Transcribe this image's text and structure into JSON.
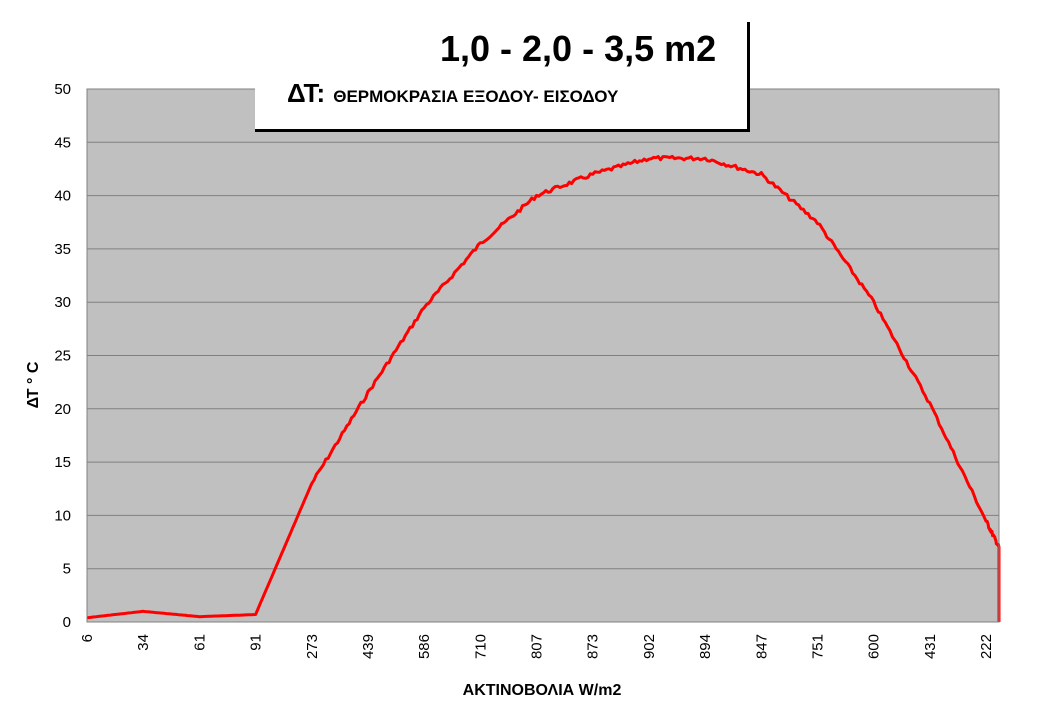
{
  "title": "1,0 - 2,0 - 3,5 m2",
  "subtitle_prefix": "ΔΤ:",
  "subtitle_text": "ΘΕΡΜΟΚΡΑΣΙΑ ΕΞΟΔΟΥ- ΕΙΣΟΔΟΥ",
  "colors": {
    "plot_background": "#c0c0c0",
    "gridline": "#808080",
    "series_line": "#ff0000"
  },
  "chart_data": {
    "type": "line",
    "title": "1,0 - 2,0 - 3,5 m2",
    "xlabel": "ΑΚΤΙΝΟΒΟΛΙΑ W/m2",
    "ylabel": "ΔΤ ° C",
    "ylim": [
      0,
      50
    ],
    "yticks": [
      0,
      5,
      10,
      15,
      20,
      25,
      30,
      35,
      40,
      45,
      50
    ],
    "grid": true,
    "legend": "none",
    "categories": [
      "6",
      "34",
      "61",
      "91",
      "273",
      "439",
      "586",
      "710",
      "807",
      "873",
      "902",
      "894",
      "847",
      "751",
      "600",
      "431",
      "222"
    ],
    "series": [
      {
        "values": [
          0.4,
          1.0,
          0.5,
          0.7,
          13.0,
          21.5,
          29.5,
          35.5,
          40.0,
          42.0,
          43.5,
          43.5,
          42.0,
          37.5,
          30.0,
          20.5,
          9.5
        ],
        "end_value": 7.0
      }
    ]
  }
}
